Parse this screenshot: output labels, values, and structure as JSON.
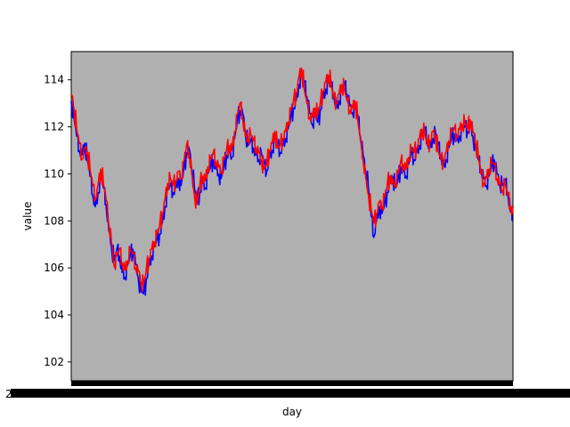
{
  "chart_data": {
    "type": "line",
    "xlabel": "day",
    "ylabel": "value",
    "ylim": [
      101.2,
      115.2
    ],
    "yticks": [
      102,
      104,
      106,
      108,
      110,
      112,
      114
    ],
    "x_tick_labels_note": "dense overlapping dates rendered as solid black band",
    "x_tick_label_visible": "2",
    "plot_background": "#b0b0b0",
    "grid": false,
    "legend": "none",
    "series": [
      {
        "color": "#0000ff",
        "values": [
          113.1,
          112.4,
          111.6,
          111.0,
          110.8,
          111.3,
          110.6,
          109.9,
          109.1,
          108.6,
          109.2,
          109.9,
          109.4,
          108.7,
          107.6,
          106.9,
          106.3,
          106.8,
          106.5,
          105.8,
          105.6,
          106.1,
          106.5,
          106.8,
          106.2,
          105.6,
          105.0,
          104.9,
          105.5,
          106.1,
          106.5,
          106.9,
          107.2,
          107.4,
          107.9,
          108.6,
          109.3,
          109.5,
          109.2,
          109.4,
          109.8,
          109.5,
          110.2,
          110.9,
          111.1,
          110.2,
          109.4,
          108.9,
          109.2,
          109.6,
          109.4,
          110.0,
          110.3,
          110.6,
          110.2,
          110.0,
          109.8,
          110.3,
          110.8,
          110.9,
          110.7,
          111.5,
          112.3,
          112.7,
          112.6,
          111.8,
          111.2,
          111.4,
          111.1,
          110.8,
          110.6,
          110.9,
          110.4,
          110.1,
          110.7,
          111.0,
          111.5,
          111.3,
          110.9,
          111.2,
          111.5,
          111.9,
          112.4,
          112.8,
          113.1,
          113.8,
          114.2,
          113.9,
          113.3,
          112.6,
          112.1,
          112.5,
          112.2,
          112.7,
          113.2,
          113.6,
          113.9,
          113.7,
          113.4,
          112.8,
          113.1,
          113.5,
          113.8,
          113.4,
          112.9,
          112.6,
          112.9,
          112.5,
          111.6,
          110.8,
          110.1,
          109.4,
          108.2,
          107.3,
          108.0,
          108.6,
          108.3,
          108.7,
          109.2,
          109.6,
          109.9,
          109.4,
          109.7,
          110.3,
          110.1,
          109.9,
          110.4,
          110.9,
          110.6,
          110.9,
          111.2,
          111.6,
          111.9,
          111.4,
          111.1,
          111.5,
          111.8,
          111.2,
          110.8,
          110.3,
          110.6,
          111.1,
          111.5,
          111.7,
          111.4,
          111.6,
          111.9,
          112.0,
          111.8,
          112.0,
          111.6,
          111.1,
          110.6,
          110.2,
          109.8,
          109.5,
          109.9,
          110.3,
          110.6,
          110.0,
          109.6,
          109.5,
          109.7,
          109.2,
          108.4,
          108.0
        ]
      },
      {
        "color": "#ff0000",
        "values": [
          113.4,
          112.8,
          111.9,
          111.3,
          110.6,
          111.1,
          110.9,
          110.2,
          109.5,
          108.9,
          109.5,
          110.2,
          109.6,
          108.9,
          107.9,
          107.1,
          106.1,
          106.5,
          106.8,
          106.2,
          105.9,
          106.3,
          106.8,
          106.6,
          106.0,
          105.9,
          105.4,
          105.3,
          105.9,
          106.4,
          106.8,
          107.1,
          107.4,
          107.8,
          108.3,
          108.9,
          109.6,
          109.8,
          109.5,
          109.7,
          110.1,
          109.8,
          110.5,
          111.2,
          110.9,
          110.0,
          109.1,
          108.7,
          109.5,
          109.9,
          109.7,
          110.3,
          110.6,
          110.9,
          110.5,
          110.3,
          110.1,
          110.6,
          111.0,
          111.2,
          111.0,
          111.8,
          112.5,
          113.0,
          112.4,
          111.6,
          111.5,
          111.7,
          111.4,
          111.1,
          110.9,
          110.6,
          110.2,
          110.4,
          111.0,
          111.3,
          111.8,
          111.1,
          111.2,
          111.5,
          111.8,
          112.2,
          112.7,
          113.1,
          113.4,
          114.1,
          114.5,
          113.6,
          113.0,
          112.4,
          112.4,
          112.8,
          112.5,
          113.0,
          113.5,
          113.9,
          114.2,
          113.9,
          113.2,
          113.0,
          113.4,
          113.8,
          113.6,
          113.1,
          112.7,
          112.8,
          113.1,
          112.3,
          111.4,
          110.6,
          109.8,
          109.1,
          108.5,
          107.9,
          108.3,
          108.8,
          108.6,
          109.0,
          109.5,
          109.9,
          109.6,
          109.6,
          110.0,
          110.5,
          110.4,
          110.2,
          110.7,
          111.1,
          110.9,
          111.1,
          111.5,
          111.9,
          111.7,
          111.2,
          111.4,
          111.8,
          111.6,
          111.0,
          110.6,
          110.5,
          110.9,
          111.4,
          111.8,
          111.9,
          111.6,
          111.9,
          112.1,
          112.2,
          111.9,
          112.3,
          111.8,
          111.3,
          110.8,
          110.0,
          109.6,
          109.8,
          110.2,
          110.5,
          110.4,
          109.8,
          109.6,
          109.3,
          109.6,
          109.1,
          108.6,
          108.3
        ]
      }
    ]
  }
}
